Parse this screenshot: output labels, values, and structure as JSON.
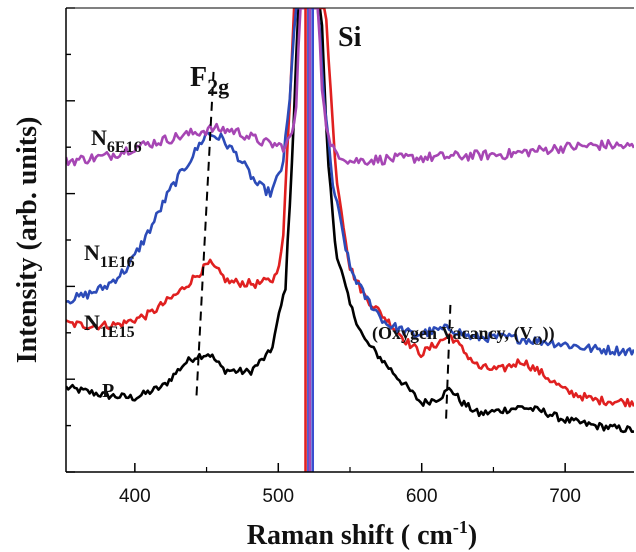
{
  "chart_data": {
    "type": "line",
    "xlabel": "Raman shift ( cm",
    "xlabel_sup": "-1",
    "xlabel_end": ")",
    "ylabel": "Intensity (arb. units)",
    "xlim": [
      352,
      748
    ],
    "ylim": [
      0,
      100
    ],
    "grid": false,
    "x_ticks": [
      400,
      500,
      600,
      700
    ],
    "x_tick_labels": [
      "400",
      "500",
      "600",
      "700"
    ],
    "series": [
      {
        "name": "P",
        "color": "#000000",
        "noise": 0.8,
        "points": [
          [
            352,
            18.2
          ],
          [
            380,
            16.5
          ],
          [
            400,
            16.0
          ],
          [
            420,
            18.5
          ],
          [
            435,
            23.5
          ],
          [
            443,
            25.0
          ],
          [
            452,
            25.5
          ],
          [
            462,
            22.0
          ],
          [
            480,
            21.5
          ],
          [
            495,
            26.0
          ],
          [
            505,
            40.0
          ],
          [
            510,
            70.0
          ],
          [
            514,
            100
          ],
          [
            530,
            100
          ],
          [
            534,
            70.0
          ],
          [
            540,
            48.0
          ],
          [
            550,
            36.0
          ],
          [
            560,
            28.5
          ],
          [
            580,
            21.5
          ],
          [
            600,
            14.8
          ],
          [
            612,
            16.0
          ],
          [
            620,
            18.0
          ],
          [
            628,
            15.0
          ],
          [
            640,
            12.5
          ],
          [
            660,
            13.5
          ],
          [
            670,
            14.0
          ],
          [
            685,
            13.0
          ],
          [
            700,
            11.2
          ],
          [
            720,
            10.0
          ],
          [
            748,
            9.0
          ]
        ]
      },
      {
        "name": "N1E15",
        "color": "#e02020",
        "noise": 0.9,
        "points": [
          [
            352,
            32.0
          ],
          [
            370,
            31.5
          ],
          [
            390,
            31.8
          ],
          [
            410,
            34.0
          ],
          [
            430,
            38.5
          ],
          [
            440,
            41.5
          ],
          [
            452,
            45.0
          ],
          [
            465,
            41.0
          ],
          [
            485,
            40.5
          ],
          [
            497,
            41.5
          ],
          [
            503,
            48.0
          ],
          [
            508,
            80.0
          ],
          [
            511,
            100
          ],
          [
            533,
            100
          ],
          [
            536,
            85.0
          ],
          [
            540,
            65.0
          ],
          [
            550,
            44.0
          ],
          [
            560,
            38.0
          ],
          [
            575,
            33.0
          ],
          [
            590,
            28.0
          ],
          [
            600,
            25.5
          ],
          [
            612,
            28.0
          ],
          [
            620,
            29.5
          ],
          [
            628,
            26.5
          ],
          [
            640,
            22.5
          ],
          [
            655,
            22.0
          ],
          [
            670,
            24.0
          ],
          [
            685,
            21.0
          ],
          [
            700,
            17.5
          ],
          [
            720,
            15.5
          ],
          [
            748,
            15.0
          ]
        ]
      },
      {
        "name": "N1E16",
        "color": "#2c4bb8",
        "noise": 1.0,
        "points": [
          [
            352,
            37.0
          ],
          [
            365,
            38.0
          ],
          [
            380,
            40.0
          ],
          [
            395,
            44.0
          ],
          [
            410,
            52.0
          ],
          [
            425,
            61.0
          ],
          [
            440,
            68.0
          ],
          [
            450,
            73.0
          ],
          [
            460,
            72.0
          ],
          [
            472,
            68.0
          ],
          [
            485,
            62.0
          ],
          [
            495,
            60.0
          ],
          [
            503,
            66.0
          ],
          [
            508,
            80.0
          ],
          [
            512,
            100
          ],
          [
            528,
            100
          ],
          [
            532,
            80.0
          ],
          [
            538,
            62.0
          ],
          [
            550,
            44.0
          ],
          [
            560,
            38.0
          ],
          [
            575,
            32.0
          ],
          [
            595,
            29.5
          ],
          [
            610,
            30.5
          ],
          [
            620,
            31.0
          ],
          [
            635,
            29.0
          ],
          [
            660,
            29.0
          ],
          [
            690,
            28.0
          ],
          [
            720,
            26.5
          ],
          [
            748,
            26.0
          ]
        ]
      },
      {
        "name": "N6E16",
        "color": "#a646b4",
        "noise": 1.1,
        "points": [
          [
            352,
            67.0
          ],
          [
            380,
            68.0
          ],
          [
            400,
            70.0
          ],
          [
            420,
            71.5
          ],
          [
            440,
            73.0
          ],
          [
            455,
            74.0
          ],
          [
            470,
            73.5
          ],
          [
            490,
            71.0
          ],
          [
            505,
            70.0
          ],
          [
            512,
            75.0
          ],
          [
            515,
            100
          ],
          [
            528,
            100
          ],
          [
            531,
            80.0
          ],
          [
            536,
            70.0
          ],
          [
            550,
            67.0
          ],
          [
            580,
            67.5
          ],
          [
            620,
            68.0
          ],
          [
            660,
            68.5
          ],
          [
            700,
            70.0
          ],
          [
            730,
            70.5
          ],
          [
            748,
            70.0
          ]
        ]
      }
    ],
    "spike_lines": [
      {
        "x": 519,
        "color": "#e02020"
      },
      {
        "x": 521,
        "color": "#3a4fd0"
      },
      {
        "x": 522,
        "color": "#a646b4"
      },
      {
        "x": 524,
        "color": "#3a4fd0"
      }
    ],
    "dashed_guides": [
      {
        "x1": 443,
        "y1": 16.5,
        "x2": 455,
        "y2": 87.0
      },
      {
        "x1": 617,
        "y1": 11.5,
        "x2": 620,
        "y2": 36.0
      }
    ],
    "annotations": {
      "F2g_main": "F",
      "F2g_sub": "2g",
      "Si": "Si",
      "vacancy": "(Oxygen Vacancy, (V",
      "vacancy_sub": "O",
      "vacancy_end": "))",
      "label_N6E16_main": "N",
      "label_N6E16_sub": "6E16",
      "label_N1E16_main": "N",
      "label_N1E16_sub": "1E16",
      "label_N1E15_main": "N",
      "label_N1E15_sub": "1E15",
      "label_P": "P"
    }
  }
}
